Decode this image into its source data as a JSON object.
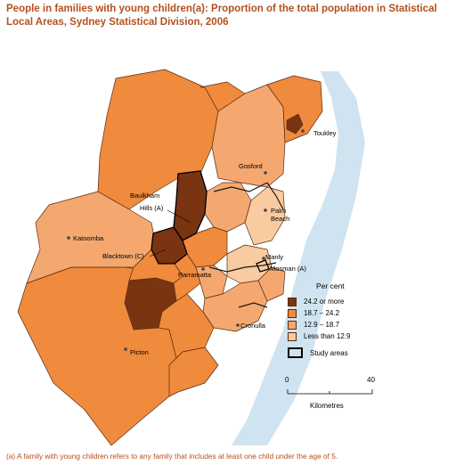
{
  "title": "People in families with young children(a): Proportion of the total population in Statistical Local Areas, Sydney Statistical Division, 2006",
  "colors": {
    "class1": "#7a3412",
    "class2": "#f08a3c",
    "class3": "#f4a870",
    "class4": "#f9cba0",
    "water": "#cfe4f0",
    "boundary": "#5a2a10",
    "title": "#b4501e"
  },
  "places": {
    "toukley": "Toukley",
    "gosford": "Gosford",
    "baulkham": "Baulkham",
    "hills_a": "Hills (A)",
    "palm": "Palm",
    "beach": "Beach",
    "katoomba": "Katoomba",
    "blacktown": "Blacktown (C)",
    "manly": "Manly",
    "parramatta": "Parramatta",
    "mosman": "Mosman (A)",
    "cronulla": "Cronulla",
    "picton": "Picton"
  },
  "legend": {
    "title": "Per cent",
    "items": [
      {
        "label": "24.2 or more",
        "color": "#7a3412"
      },
      {
        "label": "18.7 – 24.2",
        "color": "#f08a3c"
      },
      {
        "label": "12.9 – 18.7",
        "color": "#f4a870"
      },
      {
        "label": "Less than 12.9",
        "color": "#f9cba0"
      }
    ],
    "study_areas": "Study areas"
  },
  "scale": {
    "start": "0",
    "end": "40",
    "unit": "Kilometres"
  },
  "footnote": "(a) A family with young children refers to any family that includes at least one child under the age of 5."
}
